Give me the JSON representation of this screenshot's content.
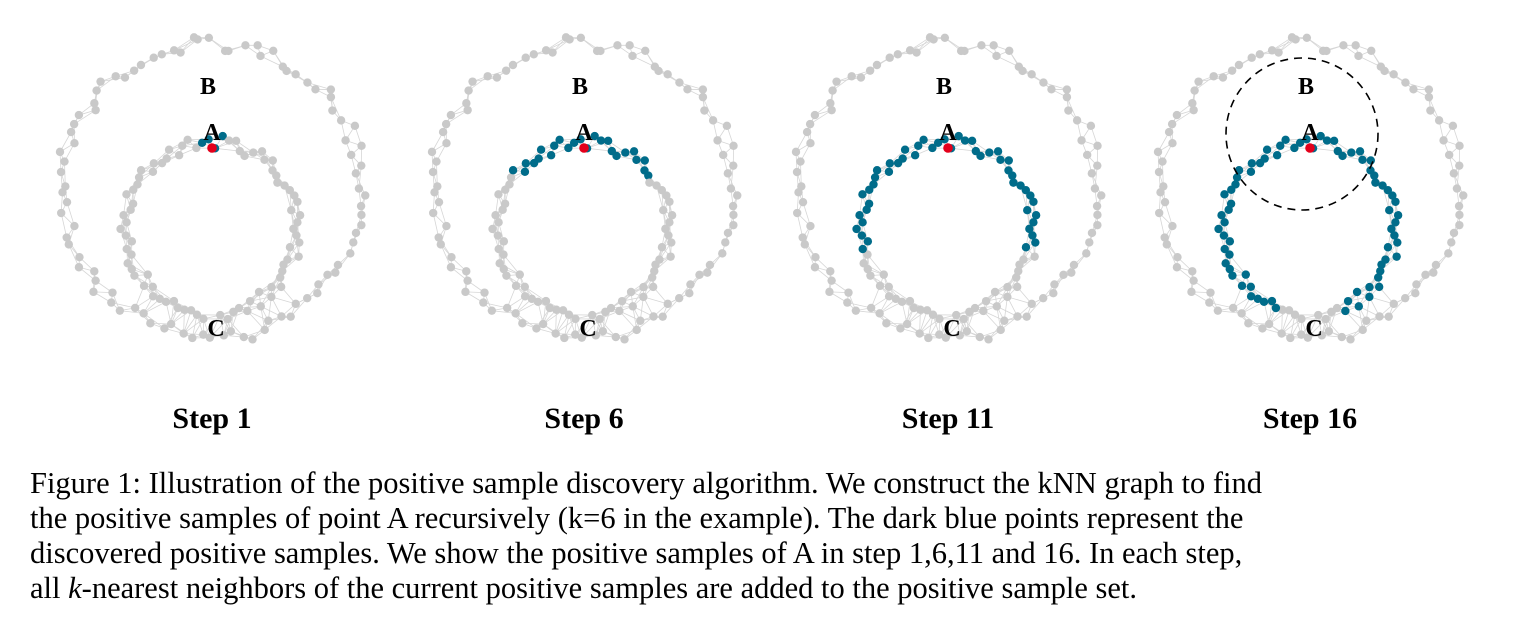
{
  "figure": {
    "panels": [
      {
        "step_label": "Step 1",
        "progress": 0.04,
        "show_radius": false
      },
      {
        "step_label": "Step 6",
        "progress": 0.3,
        "show_radius": false
      },
      {
        "step_label": "Step 11",
        "progress": 0.58,
        "show_radius": false
      },
      {
        "step_label": "Step 16",
        "progress": 0.88,
        "show_radius": true
      }
    ],
    "point_labels": {
      "a": "A",
      "b": "B",
      "c": "C"
    },
    "colors": {
      "unvisited": "#c9c9c9",
      "edge": "#d6d6d6",
      "positive": "#006c8a",
      "anchor": "#e3001b"
    }
  },
  "caption": {
    "lines": [
      "Figure 1: Illustration of the positive sample discovery algorithm. We construct the kNN graph to find",
      "the positive samples of point A recursively (k=6 in the example). The dark blue points represent the",
      "discovered positive samples. We show the positive samples of A in step 1,6,11 and 16. In each step,"
    ],
    "last_line_prefix": "all ",
    "last_line_italic": "k",
    "last_line_suffix": "-nearest neighbors of the current positive samples are added to the positive sample set."
  }
}
